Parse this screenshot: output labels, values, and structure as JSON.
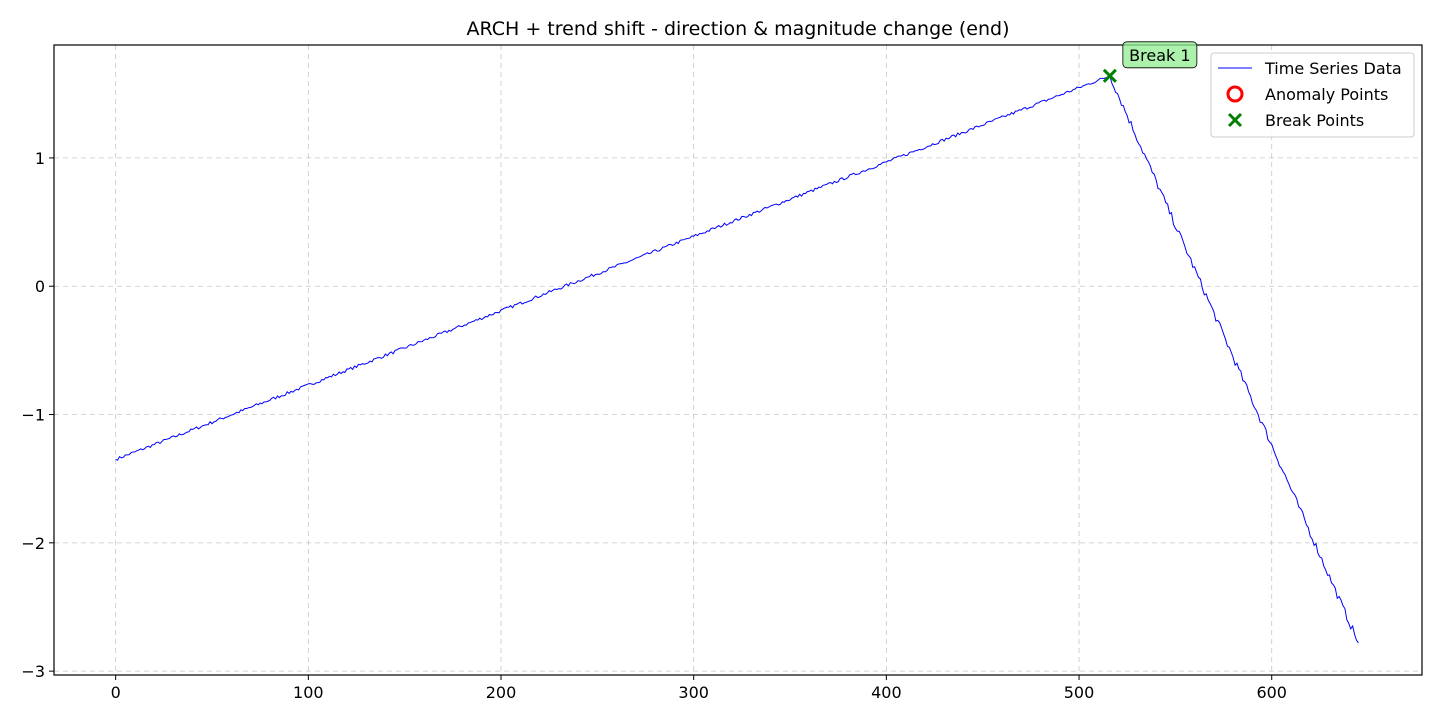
{
  "chart_data": {
    "type": "line",
    "title": "ARCH + trend shift - direction & magnitude change (end)",
    "xlabel": "",
    "ylabel": "",
    "xlim": [
      -32,
      678
    ],
    "ylim": [
      -3.03,
      1.88
    ],
    "x_ticks": [
      0,
      100,
      200,
      300,
      400,
      500,
      600
    ],
    "y_ticks": [
      1,
      0,
      -1,
      -2,
      -3
    ],
    "y_tick_labels": [
      "1",
      "0",
      "−1",
      "−2",
      "−3"
    ],
    "grid": true,
    "legend_position": "top-right",
    "series": [
      {
        "name": "Time Series Data",
        "color": "#0000ff",
        "segments": [
          {
            "x_start": 0,
            "x_end": 516,
            "y_start": -1.35,
            "y_end": 1.64,
            "noise": 0.012
          },
          {
            "x_start": 516,
            "x_end": 645,
            "y_start": 1.64,
            "y_end": -2.78,
            "noise": 0.03
          }
        ]
      }
    ],
    "markers": [
      {
        "name": "Anomaly Points",
        "symbol": "circle",
        "color": "#ff0000",
        "points": []
      },
      {
        "name": "Break Points",
        "symbol": "x",
        "color": "#008000",
        "points": [
          {
            "x": 516,
            "y": 1.64
          }
        ]
      }
    ],
    "annotations": [
      {
        "text": "Break 1",
        "x": 516,
        "y": 1.64,
        "box_color": "#90ee90"
      }
    ]
  }
}
